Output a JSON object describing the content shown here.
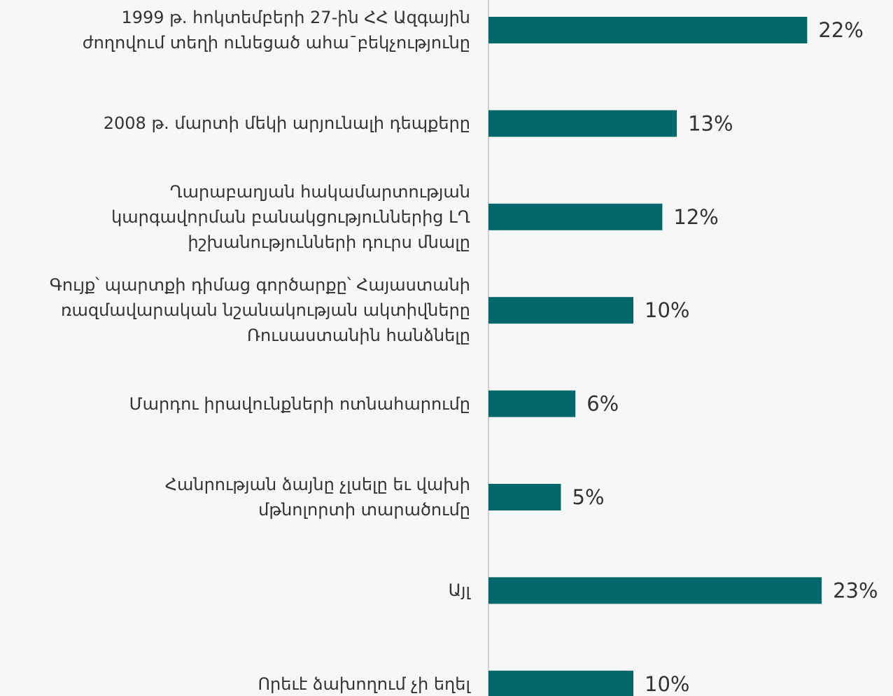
{
  "chart_data": {
    "type": "bar",
    "orientation": "horizontal",
    "categories": [
      "1999 թ. հոկտեմբերի 27-ին ՀՀ Ազգային\nժողովում տեղի ունեցած ահա¯բեկչությունը",
      "2008 թ. մարտի մեկի արյունալի դեպքերը",
      "Ղարաբաղյան հակամարտության\nկարգավորման բանակցություններից ԼՂ\nիշխանությունների դուրս մնալը",
      "Գույք՝ պարտքի դիմաց գործարքը՝ Հայաստանի\nռազմավարական նշանակության ակտիվները\nՌուսաստանին հանձնելը",
      "Մարդու իրավունքների ոտնահարումը",
      "Հանրության ձայնը չլսելը եւ վախի\nմթնոլորտի տարածումը",
      "Այլ",
      "Որեւէ ձախողում չի եղել"
    ],
    "values": [
      22,
      13,
      12,
      10,
      6,
      5,
      23,
      10
    ],
    "value_labels": [
      "22%",
      "13%",
      "12%",
      "10%",
      "6%",
      "5%",
      "23%",
      "10%"
    ],
    "color": "#02686b"
  }
}
